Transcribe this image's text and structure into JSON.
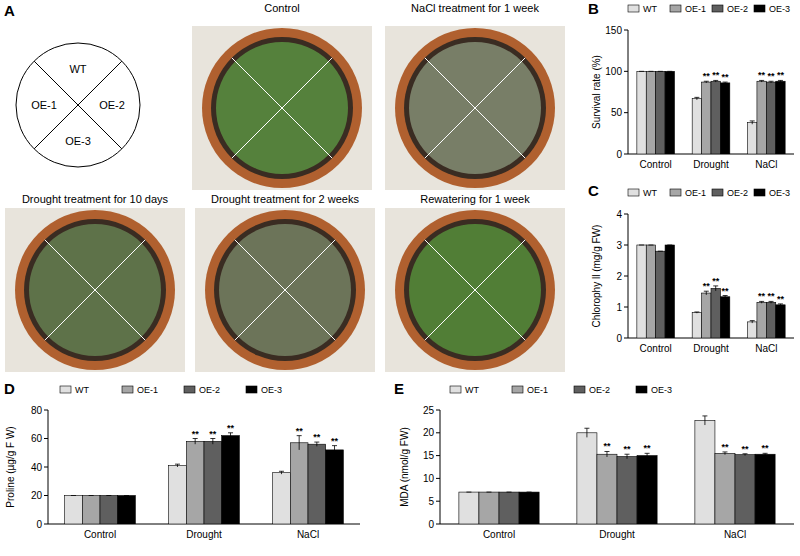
{
  "panel_a": {
    "label": "A",
    "key": {
      "quadrants": [
        "WT",
        "OE-1",
        "OE-2",
        "OE-3"
      ]
    },
    "photos": [
      {
        "title": "Control"
      },
      {
        "title": "NaCl treatment for 1 week"
      },
      {
        "title": "Drought treatment for 10 days"
      },
      {
        "title": "Drought treatment for 2 weeks"
      },
      {
        "title": "Rewatering for 1 week"
      }
    ]
  },
  "chart_data": [
    {
      "type": "bar",
      "annotations": [
        "B"
      ],
      "y_label": "Survival rate (%)",
      "categories": [
        "Control",
        "Drought",
        "NaCl"
      ],
      "ylim": [
        0,
        150
      ],
      "yticks": [
        0,
        50,
        100,
        150
      ],
      "legend": "top",
      "series": [
        {
          "name": "WT",
          "color": "#e0e0e0",
          "values": [
            100,
            67,
            38
          ],
          "errors": [
            0,
            1.5,
            2
          ],
          "significance": [
            null,
            null,
            null
          ]
        },
        {
          "name": "OE-1",
          "color": "#a6a6a6",
          "values": [
            100,
            87,
            88
          ],
          "errors": [
            0,
            1,
            1
          ],
          "significance": [
            null,
            "**",
            "**"
          ]
        },
        {
          "name": "OE-2",
          "color": "#5f5f5f",
          "values": [
            100,
            88,
            87
          ],
          "errors": [
            0,
            1,
            1
          ],
          "significance": [
            null,
            "**",
            "**"
          ]
        },
        {
          "name": "OE-3",
          "color": "#000000",
          "values": [
            100,
            86,
            88
          ],
          "errors": [
            0,
            1,
            1
          ],
          "significance": [
            null,
            "**",
            "**"
          ]
        }
      ]
    },
    {
      "type": "bar",
      "annotations": [
        "C"
      ],
      "y_label": "Chlorophy ll (mg/g FW)",
      "categories": [
        "Control",
        "Drought",
        "NaCl"
      ],
      "ylim": [
        0,
        4
      ],
      "yticks": [
        0,
        1,
        2,
        3,
        4
      ],
      "legend": "top",
      "series": [
        {
          "name": "WT",
          "color": "#e0e0e0",
          "values": [
            3.0,
            0.82,
            0.52
          ],
          "errors": [
            0,
            0.02,
            0.04
          ],
          "significance": [
            null,
            null,
            null
          ]
        },
        {
          "name": "OE-1",
          "color": "#a6a6a6",
          "values": [
            3.0,
            1.45,
            1.15
          ],
          "errors": [
            0,
            0.06,
            0.03
          ],
          "significance": [
            null,
            "**",
            "**"
          ]
        },
        {
          "name": "OE-2",
          "color": "#5f5f5f",
          "values": [
            2.8,
            1.6,
            1.15
          ],
          "errors": [
            0,
            0.08,
            0.03
          ],
          "significance": [
            null,
            "**",
            "**"
          ]
        },
        {
          "name": "OE-3",
          "color": "#000000",
          "values": [
            3.0,
            1.33,
            1.07
          ],
          "errors": [
            0,
            0.04,
            0.03
          ],
          "significance": [
            null,
            "**",
            "**"
          ]
        }
      ]
    },
    {
      "type": "bar",
      "annotations": [
        "D"
      ],
      "y_label": "Proline (µg/g F W)",
      "categories": [
        "Control",
        "Drought",
        "NaCl"
      ],
      "ylim": [
        0,
        80
      ],
      "yticks": [
        0,
        20,
        40,
        60,
        80
      ],
      "legend": "top",
      "series": [
        {
          "name": "WT",
          "color": "#e0e0e0",
          "values": [
            20,
            41,
            36
          ],
          "errors": [
            0,
            1,
            1
          ],
          "significance": [
            null,
            null,
            null
          ]
        },
        {
          "name": "OE-1",
          "color": "#a6a6a6",
          "values": [
            20,
            58,
            57
          ],
          "errors": [
            0,
            2,
            5
          ],
          "significance": [
            null,
            "**",
            "**"
          ]
        },
        {
          "name": "OE-2",
          "color": "#5f5f5f",
          "values": [
            20,
            58,
            56
          ],
          "errors": [
            0,
            2,
            1.5
          ],
          "significance": [
            null,
            "**",
            "**"
          ]
        },
        {
          "name": "OE-3",
          "color": "#000000",
          "values": [
            20,
            62,
            52
          ],
          "errors": [
            0,
            2,
            3
          ],
          "significance": [
            null,
            "**",
            "**"
          ]
        }
      ]
    },
    {
      "type": "bar",
      "annotations": [
        "E"
      ],
      "y_label": "MDA (nmol/g FW)",
      "categories": [
        "Control",
        "Drought",
        "NaCl"
      ],
      "ylim": [
        0,
        25
      ],
      "yticks": [
        0,
        5,
        10,
        15,
        20,
        25
      ],
      "legend": "top",
      "series": [
        {
          "name": "WT",
          "color": "#e0e0e0",
          "values": [
            7,
            20,
            22.7
          ],
          "errors": [
            0,
            1,
            1
          ],
          "significance": [
            null,
            null,
            null
          ]
        },
        {
          "name": "OE-1",
          "color": "#a6a6a6",
          "values": [
            7,
            15.3,
            15.5
          ],
          "errors": [
            0,
            0.6,
            0.3
          ],
          "significance": [
            null,
            "**",
            "**"
          ]
        },
        {
          "name": "OE-2",
          "color": "#5f5f5f",
          "values": [
            7,
            14.8,
            15.2
          ],
          "errors": [
            0,
            0.5,
            0.2
          ],
          "significance": [
            null,
            "**",
            "**"
          ]
        },
        {
          "name": "OE-3",
          "color": "#000000",
          "values": [
            7,
            15,
            15.3
          ],
          "errors": [
            0,
            0.5,
            0.2
          ],
          "significance": [
            null,
            "**",
            "**"
          ]
        }
      ]
    }
  ]
}
